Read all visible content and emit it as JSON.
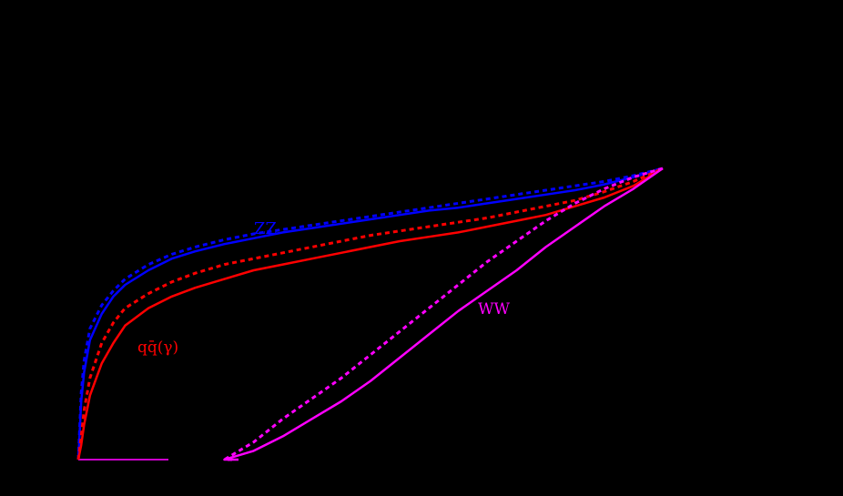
{
  "chart_data": {
    "type": "line",
    "title": "",
    "xlabel": "",
    "ylabel": "",
    "xlim": [
      0,
      1
    ],
    "ylim": [
      0,
      1
    ],
    "grid": false,
    "background": "#000000",
    "annotations": [
      {
        "text": "ZZ",
        "color": "#0000ff"
      },
      {
        "text": "qq̄(γ)",
        "color": "#ff0000"
      },
      {
        "text": "WW",
        "color": "#ff00ff"
      }
    ],
    "x": [
      0.0,
      0.005,
      0.01,
      0.02,
      0.04,
      0.06,
      0.08,
      0.12,
      0.16,
      0.2,
      0.25,
      0.3,
      0.35,
      0.4,
      0.45,
      0.5,
      0.55,
      0.6,
      0.65,
      0.7,
      0.75,
      0.8,
      0.85,
      0.9,
      0.95,
      1.0
    ],
    "series": [
      {
        "name": "ZZ (solid)",
        "color": "#0000ff",
        "style": "solid",
        "values": [
          0.0,
          0.2,
          0.3,
          0.41,
          0.5,
          0.56,
          0.6,
          0.65,
          0.69,
          0.715,
          0.74,
          0.76,
          0.78,
          0.795,
          0.81,
          0.825,
          0.84,
          0.855,
          0.865,
          0.88,
          0.895,
          0.91,
          0.925,
          0.945,
          0.97,
          1.0
        ]
      },
      {
        "name": "ZZ (dashed)",
        "color": "#0000ff",
        "style": "dashed",
        "values": [
          0.0,
          0.23,
          0.34,
          0.45,
          0.53,
          0.58,
          0.62,
          0.67,
          0.705,
          0.73,
          0.755,
          0.775,
          0.79,
          0.805,
          0.82,
          0.835,
          0.85,
          0.865,
          0.88,
          0.895,
          0.91,
          0.925,
          0.94,
          0.955,
          0.975,
          1.0
        ]
      },
      {
        "name": "qq̄(γ) (solid)",
        "color": "#ff0000",
        "style": "solid",
        "values": [
          0.0,
          0.05,
          0.12,
          0.22,
          0.33,
          0.4,
          0.46,
          0.52,
          0.56,
          0.59,
          0.62,
          0.65,
          0.67,
          0.69,
          0.71,
          0.73,
          0.75,
          0.765,
          0.78,
          0.8,
          0.82,
          0.84,
          0.87,
          0.9,
          0.94,
          1.0
        ]
      },
      {
        "name": "qq̄(γ) (dashed)",
        "color": "#ff0000",
        "style": "dashed",
        "values": [
          0.0,
          0.08,
          0.17,
          0.28,
          0.4,
          0.47,
          0.52,
          0.57,
          0.61,
          0.64,
          0.67,
          0.69,
          0.71,
          0.73,
          0.75,
          0.77,
          0.785,
          0.8,
          0.815,
          0.83,
          0.85,
          0.87,
          0.89,
          0.92,
          0.955,
          1.0
        ]
      },
      {
        "name": "WW (solid)",
        "color": "#ff00ff",
        "style": "solid",
        "values": [
          0.0,
          0.0,
          0.0,
          0.0,
          0.0,
          0.0,
          0.0,
          0.0,
          0.0,
          0.0,
          0.0,
          0.03,
          0.08,
          0.14,
          0.2,
          0.27,
          0.35,
          0.43,
          0.51,
          0.58,
          0.65,
          0.73,
          0.8,
          0.87,
          0.93,
          1.0
        ]
      },
      {
        "name": "WW (dashed)",
        "color": "#ff00ff",
        "style": "dashed",
        "values": [
          0.0,
          0.0,
          0.0,
          0.0,
          0.0,
          0.0,
          0.0,
          0.0,
          0.0,
          0.0,
          0.0,
          0.06,
          0.14,
          0.21,
          0.28,
          0.36,
          0.44,
          0.52,
          0.6,
          0.68,
          0.75,
          0.82,
          0.88,
          0.93,
          0.97,
          1.0
        ]
      }
    ]
  },
  "labels": {
    "zz": "ZZ",
    "qq": "qq̄(γ)",
    "ww": "WW"
  }
}
